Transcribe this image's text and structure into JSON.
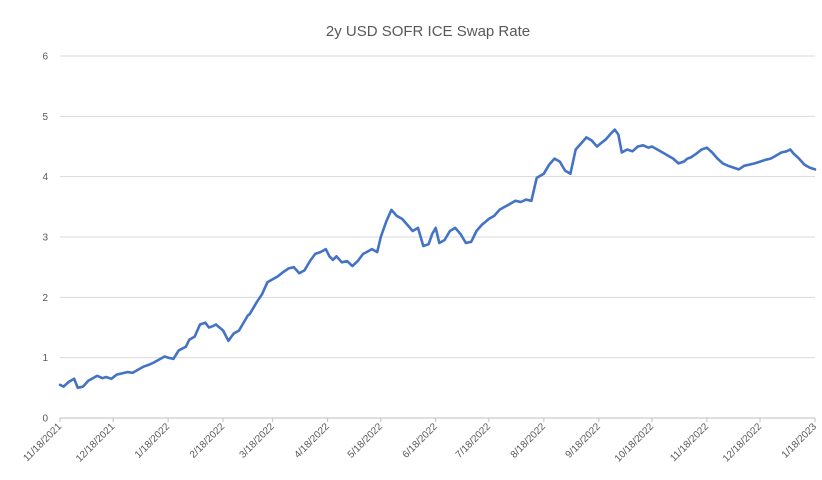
{
  "chart_data": {
    "type": "line",
    "title": "2y USD SOFR ICE Swap Rate",
    "xlabel": "",
    "ylabel": "",
    "ylim": [
      0,
      6
    ],
    "yticks": [
      "0",
      "1",
      "2",
      "3",
      "4",
      "5",
      "6"
    ],
    "xlim": [
      "2021-11-18",
      "2023-01-18"
    ],
    "xticks": [
      "2021-11-18",
      "2021-12-18",
      "2022-01-18",
      "2022-02-18",
      "2022-03-18",
      "2022-04-18",
      "2022-05-18",
      "2022-06-18",
      "2022-07-18",
      "2022-08-18",
      "2022-09-18",
      "2022-10-18",
      "2022-11-18",
      "2022-12-18",
      "2023-01-18"
    ],
    "xtick_labels": [
      "11/18/2021",
      "12/18/2021",
      "1/18/2022",
      "2/18/2022",
      "3/18/2022",
      "4/18/2022",
      "5/18/2022",
      "6/18/2022",
      "7/18/2022",
      "8/18/2022",
      "9/18/2022",
      "10/18/2022",
      "11/18/2022",
      "12/18/2022",
      "1/18/2023"
    ],
    "grid": "horizontal",
    "legend": "none",
    "color": "#4472c4",
    "series": [
      {
        "x": [
          "2021-11-18",
          "2021-11-20",
          "2021-11-23",
          "2021-11-26",
          "2021-11-28",
          "2021-12-01",
          "2021-12-04",
          "2021-12-06",
          "2021-12-09",
          "2021-12-12",
          "2021-12-14",
          "2021-12-17",
          "2021-12-20",
          "2021-12-23",
          "2021-12-26",
          "2021-12-29",
          "2022-01-01",
          "2022-01-04",
          "2022-01-07",
          "2022-01-10",
          "2022-01-13",
          "2022-01-16",
          "2022-01-18",
          "2022-01-21",
          "2022-01-24",
          "2022-01-26",
          "2022-01-28",
          "2022-01-30",
          "2022-02-02",
          "2022-02-05",
          "2022-02-08",
          "2022-02-10",
          "2022-02-12",
          "2022-02-14",
          "2022-02-16",
          "2022-02-18",
          "2022-02-21",
          "2022-02-24",
          "2022-02-27",
          "2022-03-02",
          "2022-03-04",
          "2022-03-05",
          "2022-03-07",
          "2022-03-09",
          "2022-03-12",
          "2022-03-15",
          "2022-03-18",
          "2022-03-21",
          "2022-03-24",
          "2022-03-27",
          "2022-03-30",
          "2022-04-02",
          "2022-04-05",
          "2022-04-08",
          "2022-04-11",
          "2022-04-14",
          "2022-04-17",
          "2022-04-19",
          "2022-04-21",
          "2022-04-23",
          "2022-04-26",
          "2022-04-29",
          "2022-05-02",
          "2022-05-05",
          "2022-05-08",
          "2022-05-10",
          "2022-05-13",
          "2022-05-16",
          "2022-05-18",
          "2022-05-21",
          "2022-05-24",
          "2022-05-27",
          "2022-05-30",
          "2022-06-02",
          "2022-06-05",
          "2022-06-08",
          "2022-06-11",
          "2022-06-14",
          "2022-06-16",
          "2022-06-18",
          "2022-06-20",
          "2022-06-23",
          "2022-06-26",
          "2022-06-29",
          "2022-07-02",
          "2022-07-05",
          "2022-07-08",
          "2022-07-11",
          "2022-07-14",
          "2022-07-16",
          "2022-07-18",
          "2022-07-21",
          "2022-07-24",
          "2022-07-27",
          "2022-07-30",
          "2022-08-02",
          "2022-08-05",
          "2022-08-08",
          "2022-08-11",
          "2022-08-14",
          "2022-08-18",
          "2022-08-21",
          "2022-08-24",
          "2022-08-27",
          "2022-08-30",
          "2022-09-02",
          "2022-09-05",
          "2022-09-08",
          "2022-09-11",
          "2022-09-14",
          "2022-09-17",
          "2022-09-19",
          "2022-09-22",
          "2022-09-25",
          "2022-09-27",
          "2022-09-29",
          "2022-10-01",
          "2022-10-04",
          "2022-10-07",
          "2022-10-10",
          "2022-10-13",
          "2022-10-16",
          "2022-10-18",
          "2022-10-21",
          "2022-10-24",
          "2022-10-27",
          "2022-10-30",
          "2022-11-02",
          "2022-11-05",
          "2022-11-07",
          "2022-11-09",
          "2022-11-12",
          "2022-11-15",
          "2022-11-18",
          "2022-11-21",
          "2022-11-24",
          "2022-11-27",
          "2022-11-30",
          "2022-12-03",
          "2022-12-06",
          "2022-12-09",
          "2022-12-12",
          "2022-12-15",
          "2022-12-18",
          "2022-12-21",
          "2022-12-24",
          "2022-12-27",
          "2022-12-30",
          "2023-01-02",
          "2023-01-04",
          "2023-01-06",
          "2023-01-09",
          "2023-01-12",
          "2023-01-15",
          "2023-01-18"
        ],
        "y": [
          0.55,
          0.52,
          0.6,
          0.65,
          0.5,
          0.52,
          0.62,
          0.65,
          0.7,
          0.66,
          0.68,
          0.65,
          0.72,
          0.74,
          0.76,
          0.75,
          0.8,
          0.85,
          0.88,
          0.92,
          0.97,
          1.02,
          1.0,
          0.98,
          1.12,
          1.15,
          1.18,
          1.3,
          1.35,
          1.55,
          1.58,
          1.5,
          1.52,
          1.55,
          1.5,
          1.45,
          1.28,
          1.4,
          1.45,
          1.6,
          1.7,
          1.72,
          1.82,
          1.92,
          2.05,
          2.25,
          2.3,
          2.35,
          2.42,
          2.48,
          2.5,
          2.4,
          2.45,
          2.6,
          2.72,
          2.75,
          2.8,
          2.68,
          2.62,
          2.68,
          2.58,
          2.6,
          2.52,
          2.6,
          2.72,
          2.75,
          2.8,
          2.75,
          3.0,
          3.25,
          3.45,
          3.35,
          3.3,
          3.2,
          3.1,
          3.15,
          2.85,
          2.88,
          3.05,
          3.15,
          2.9,
          2.95,
          3.1,
          3.15,
          3.05,
          2.9,
          2.92,
          3.1,
          3.2,
          3.25,
          3.3,
          3.35,
          3.45,
          3.5,
          3.55,
          3.6,
          3.58,
          3.62,
          3.6,
          3.98,
          4.05,
          4.2,
          4.3,
          4.25,
          4.1,
          4.05,
          4.45,
          4.55,
          4.65,
          4.6,
          4.5,
          4.55,
          4.62,
          4.72,
          4.78,
          4.7,
          4.4,
          4.45,
          4.42,
          4.5,
          4.52,
          4.48,
          4.5,
          4.45,
          4.4,
          4.35,
          4.3,
          4.22,
          4.25,
          4.3,
          4.32,
          4.38,
          4.45,
          4.48,
          4.4,
          4.3,
          4.22,
          4.18,
          4.15,
          4.12,
          4.18,
          4.2,
          4.22,
          4.25,
          4.28,
          4.3,
          4.35,
          4.4,
          4.42,
          4.45,
          4.38,
          4.3,
          4.2,
          4.15,
          4.12
        ]
      }
    ]
  }
}
